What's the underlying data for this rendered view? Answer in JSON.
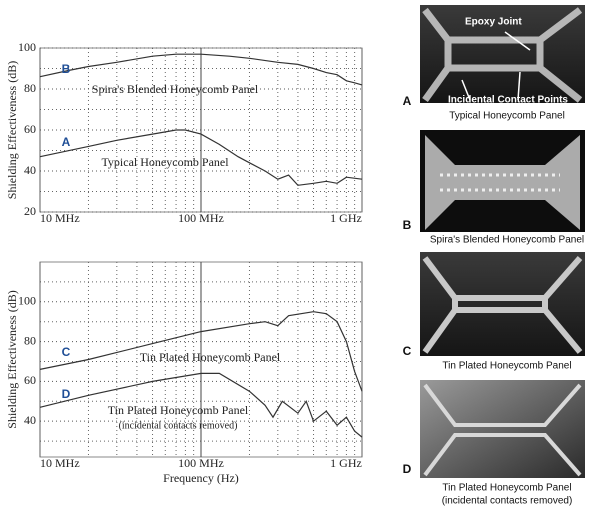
{
  "chart_data": [
    {
      "type": "line",
      "x_log": true,
      "grid": true,
      "ylabel": "Shielding Effectiveness (dB)",
      "xlim": [
        10000000,
        1000000000
      ],
      "xticks": [
        {
          "value": 10000000,
          "label": "10 MHz"
        },
        {
          "value": 100000000,
          "label": "100 MHz"
        },
        {
          "value": 1000000000,
          "label": "1 GHz"
        }
      ],
      "x_minor_ticks": [
        20000000,
        30000000,
        40000000,
        50000000,
        60000000,
        70000000,
        80000000,
        90000000,
        200000000,
        300000000,
        400000000,
        500000000,
        600000000,
        700000000,
        800000000,
        900000000
      ],
      "ylim": [
        20,
        100
      ],
      "yticks": [
        20,
        40,
        60,
        80,
        100
      ],
      "y_minor_ticks": [
        30,
        50,
        70,
        90
      ],
      "series": [
        {
          "letter": "B",
          "name": "Spira's Blended Honeycomb Panel",
          "color": "#333333",
          "x": [
            10000000,
            15000000,
            20000000,
            30000000,
            50000000,
            70000000,
            100000000,
            150000000,
            200000000,
            300000000,
            400000000,
            500000000,
            600000000,
            700000000,
            800000000,
            900000000,
            1000000000
          ],
          "values": [
            86,
            89,
            91,
            93,
            96,
            97,
            97,
            96,
            95,
            93,
            92,
            90,
            88,
            87,
            84,
            83,
            82
          ]
        },
        {
          "letter": "A",
          "name": "Typical Honeycomb Panel",
          "color": "#333333",
          "x": [
            10000000,
            20000000,
            30000000,
            50000000,
            70000000,
            80000000,
            100000000,
            130000000,
            170000000,
            200000000,
            250000000,
            300000000,
            350000000,
            400000000,
            500000000,
            600000000,
            700000000,
            800000000,
            1000000000
          ],
          "values": [
            47,
            52,
            55,
            58,
            60,
            60,
            58,
            53,
            47,
            44,
            40,
            36,
            38,
            33,
            34,
            35,
            34,
            37,
            36
          ]
        }
      ]
    },
    {
      "type": "line",
      "x_log": true,
      "grid": true,
      "ylabel": "Shielding Effectiveness (dB)",
      "xlabel": "Frequency (Hz)",
      "xlim": [
        10000000,
        1000000000
      ],
      "xticks": [
        {
          "value": 10000000,
          "label": "10 MHz"
        },
        {
          "value": 100000000,
          "label": "100 MHz"
        },
        {
          "value": 1000000000,
          "label": "1 GHz"
        }
      ],
      "x_minor_ticks": [
        20000000,
        30000000,
        40000000,
        50000000,
        60000000,
        70000000,
        80000000,
        90000000,
        200000000,
        300000000,
        400000000,
        500000000,
        600000000,
        700000000,
        800000000,
        900000000
      ],
      "ylim": [
        22,
        120
      ],
      "yticks": [
        40,
        60,
        80,
        100
      ],
      "y_minor_ticks": [
        30,
        50,
        70,
        90,
        110
      ],
      "series": [
        {
          "letter": "C",
          "name": "Tin Plated Honeycomb Panel",
          "color": "#333333",
          "x": [
            10000000,
            20000000,
            50000000,
            100000000,
            200000000,
            250000000,
            300000000,
            350000000,
            500000000,
            600000000,
            700000000,
            800000000,
            900000000,
            1000000000
          ],
          "values": [
            66,
            71,
            79,
            85,
            89,
            90,
            88,
            93,
            95,
            94,
            90,
            80,
            65,
            55
          ]
        },
        {
          "letter": "D",
          "name": "Tin Plated Honeycomb Panel",
          "note": "(incidental contacts removed)",
          "color": "#333333",
          "x": [
            10000000,
            20000000,
            50000000,
            100000000,
            130000000,
            200000000,
            250000000,
            280000000,
            320000000,
            400000000,
            450000000,
            500000000,
            600000000,
            700000000,
            800000000,
            900000000,
            1000000000
          ],
          "values": [
            47,
            53,
            60,
            64,
            64,
            55,
            48,
            42,
            50,
            44,
            50,
            40,
            45,
            38,
            42,
            35,
            32
          ]
        }
      ]
    }
  ],
  "photos": [
    {
      "letter": "A",
      "caption": [
        "Typical Honeycomb Panel"
      ],
      "annotations": [
        "Epoxy Joint",
        "Incidental Contact Points"
      ]
    },
    {
      "letter": "B",
      "caption": [
        "Spira's Blended Honeycomb Panel"
      ]
    },
    {
      "letter": "C",
      "caption": [
        "Tin Plated Honeycomb Panel"
      ]
    },
    {
      "letter": "D",
      "caption": [
        "Tin Plated Honeycomb Panel",
        "(incidental contacts removed)"
      ]
    }
  ]
}
